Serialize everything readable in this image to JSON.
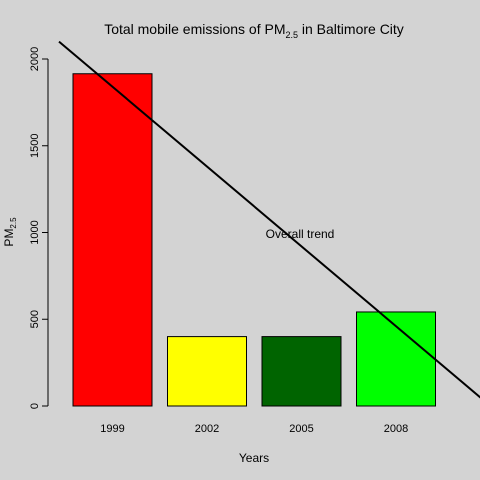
{
  "chart_data": {
    "type": "bar",
    "title": {
      "prefix": "Total mobile emissions of PM",
      "subscript": "2.5",
      "suffix": " in Baltimore City"
    },
    "xlabel": "Years",
    "ylabel": {
      "base": "PM",
      "subscript": "2.5"
    },
    "categories": [
      "1999",
      "2002",
      "2005",
      "2008"
    ],
    "values": [
      1915,
      400,
      400,
      542
    ],
    "colors": [
      "#ff0000",
      "#ffff00",
      "#006400",
      "#00ff00"
    ],
    "ylim": [
      0,
      2000
    ],
    "yticks": [
      0,
      500,
      1000,
      1500,
      2000
    ],
    "grid": false,
    "background": "#d3d3d3",
    "trend": {
      "label": "Overall trend",
      "intercept": 1840,
      "slope_per_bar": -460
    }
  }
}
